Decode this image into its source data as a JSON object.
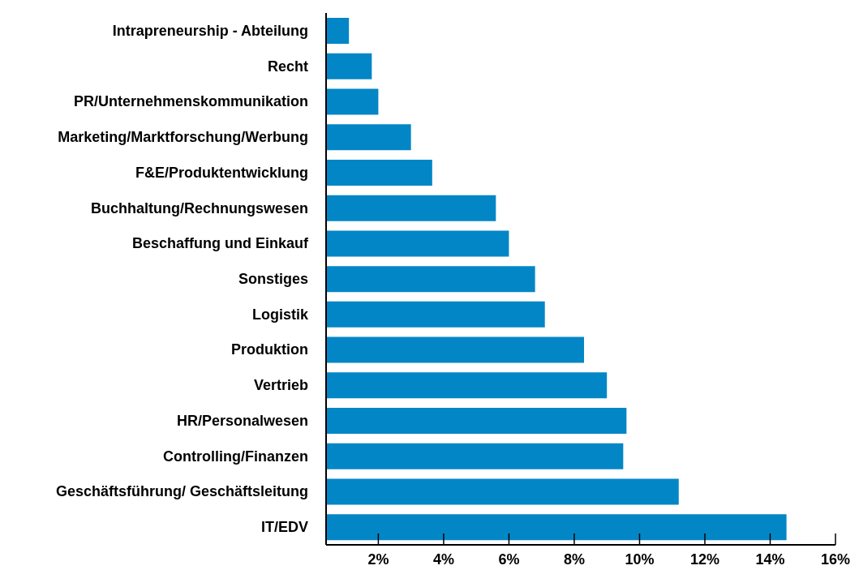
{
  "chart_data": {
    "type": "bar",
    "orientation": "horizontal",
    "categories": [
      "Intrapreneurship - Abteilung",
      "Recht",
      "PR/Unternehmenskommunikation",
      "Marketing/Marktforschung/Werbung",
      "F&E/Produktentwicklung",
      "Buchhaltung/Rechnungswesen",
      "Beschaffung und Einkauf",
      "Sonstiges",
      "Logistik",
      "Produktion",
      "Vertrieb",
      "HR/Personalwesen",
      "Controlling/Finanzen",
      "Geschäftsführung/ Geschäftsleitung",
      "IT/EDV"
    ],
    "values": [
      1.1,
      1.8,
      2.0,
      3.0,
      3.65,
      5.6,
      6.0,
      6.8,
      7.1,
      8.3,
      9.0,
      9.6,
      9.5,
      11.2,
      14.5
    ],
    "color": "#0386c6",
    "xlim": [
      0.4,
      16
    ],
    "xticks": [
      {
        "value": 2,
        "label": "2%"
      },
      {
        "value": 4,
        "label": "4%"
      },
      {
        "value": 6,
        "label": "6%"
      },
      {
        "value": 8,
        "label": "8%"
      },
      {
        "value": 10,
        "label": "10%"
      },
      {
        "value": 12,
        "label": "12%"
      },
      {
        "value": 14,
        "label": "14%"
      },
      {
        "value": 16,
        "label": "16%"
      }
    ],
    "grid": false,
    "legend": false
  }
}
